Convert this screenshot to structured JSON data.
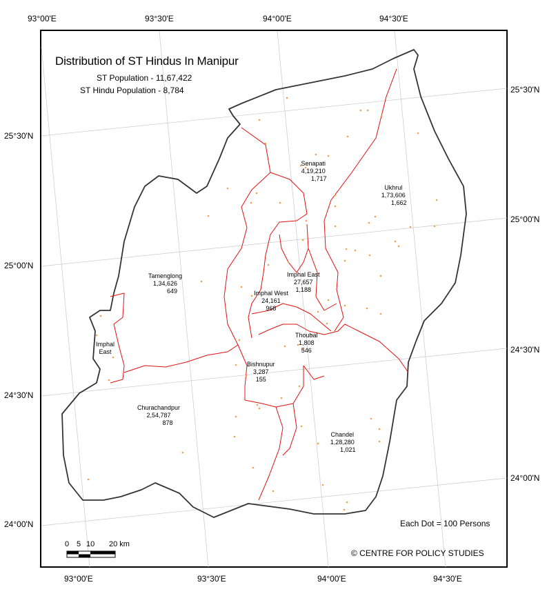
{
  "title": "Distribution of ST Hindus In Manipur",
  "subtitles": {
    "st_population": "ST Population - 11,67,422",
    "st_hindu_population": "ST Hindu Population - 8,784"
  },
  "top_longitudes": [
    "93°00'E",
    "93°30'E",
    "94°00'E",
    "94°30'E"
  ],
  "bottom_longitudes": [
    "93°00'E",
    "93°30'E",
    "94°00'E",
    "94°30'E"
  ],
  "left_latitudes": [
    "25°30'N",
    "25°00'N",
    "24°30'N",
    "24°00'N"
  ],
  "right_latitudes": [
    "25°30'N",
    "25°00'N",
    "24°30'N",
    "24°00'N"
  ],
  "districts": [
    {
      "name": "Senapati",
      "population": "4,19,210",
      "hindus": "1,717"
    },
    {
      "name": "Ukhrul",
      "population": "1,73,606",
      "hindus": "1,662"
    },
    {
      "name": "Tamenglong",
      "population": "1,34,626",
      "hindus": "649"
    },
    {
      "name": "Imphal East",
      "population": "27,657",
      "hindus": "1,188"
    },
    {
      "name": "Imphal West",
      "population": "24,161",
      "hindus": "968"
    },
    {
      "name": "Thoubal",
      "population": "1,808",
      "hindus": "546"
    },
    {
      "name": "Bishnupur",
      "population": "3,287",
      "hindus": "155"
    },
    {
      "name": "Churachandpur",
      "population": "2,54,787",
      "hindus": "878"
    },
    {
      "name": "Chandel",
      "population": "1,28,280",
      "hindus": "1,021"
    },
    {
      "name": "Imphal\nEast"
    }
  ],
  "legend": {
    "dot_value": "Each Dot = 100 Persons"
  },
  "scale_bar": {
    "labels": [
      "0",
      "5",
      "10",
      "20 km"
    ]
  },
  "credit": "© CENTRE FOR POLICY STUDIES",
  "colors": {
    "boundary": "#333333",
    "district_lines": "#e01010",
    "dots": "#f0a050",
    "graticule": "#c8c8c8"
  }
}
